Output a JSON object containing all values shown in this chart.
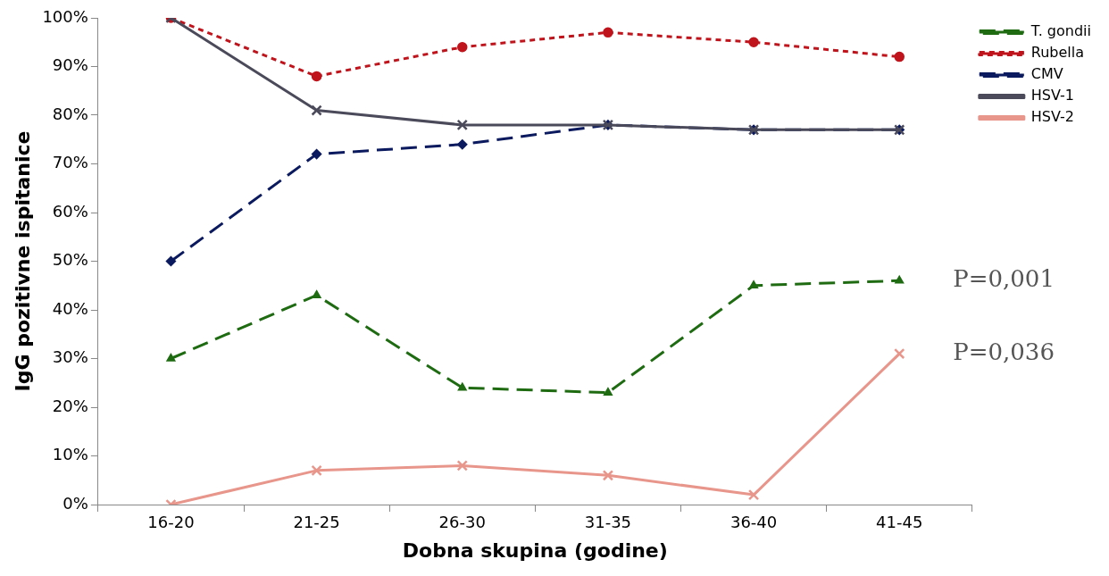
{
  "chart_data": {
    "type": "line",
    "xlabel": "Dobna skupina (godine)",
    "ylabel": "IgG pozitivne ispitanice",
    "categories": [
      "16-20",
      "21-25",
      "26-30",
      "31-35",
      "36-40",
      "41-45"
    ],
    "ylim": [
      0,
      100
    ],
    "yticks": [
      {
        "value": 0,
        "label": "0%"
      },
      {
        "value": 10,
        "label": "10%"
      },
      {
        "value": 20,
        "label": "20%"
      },
      {
        "value": 30,
        "label": "30%"
      },
      {
        "value": 40,
        "label": "40%"
      },
      {
        "value": 50,
        "label": "50%"
      },
      {
        "value": 60,
        "label": "60%"
      },
      {
        "value": 70,
        "label": "70%"
      },
      {
        "value": 80,
        "label": "80%"
      },
      {
        "value": 90,
        "label": "90%"
      },
      {
        "value": 100,
        "label": "100%"
      }
    ],
    "grid": false,
    "legend": "top right",
    "series": [
      {
        "name": "T. gondii",
        "color": "#1e6b12",
        "marker": "triangle",
        "line_style": "dashed",
        "values": [
          30,
          43,
          24,
          23,
          45,
          46
        ]
      },
      {
        "name": "Rubella",
        "color": "#c0141c",
        "marker": "circle",
        "line_style": "dotted",
        "values": [
          100,
          88,
          94,
          97,
          95,
          92
        ]
      },
      {
        "name": "CMV",
        "color": "#0b1a5e",
        "marker": "diamond",
        "line_style": "dashed",
        "values": [
          50,
          72,
          74,
          78,
          77,
          77
        ]
      },
      {
        "name": "HSV-1",
        "color": "#4a4a5a",
        "marker": "cross",
        "line_style": "solid",
        "values": [
          100,
          81,
          78,
          78,
          77,
          77
        ]
      },
      {
        "name": "HSV-2",
        "color": "#e8968c",
        "marker": "cross",
        "line_style": "solid",
        "values": [
          0,
          7,
          8,
          6,
          2,
          31
        ]
      }
    ],
    "annotations": [
      {
        "text": "P=0,001",
        "x": "41-45",
        "y": 46
      },
      {
        "text": "P=0,036",
        "x": "41-45",
        "y": 31
      }
    ]
  }
}
